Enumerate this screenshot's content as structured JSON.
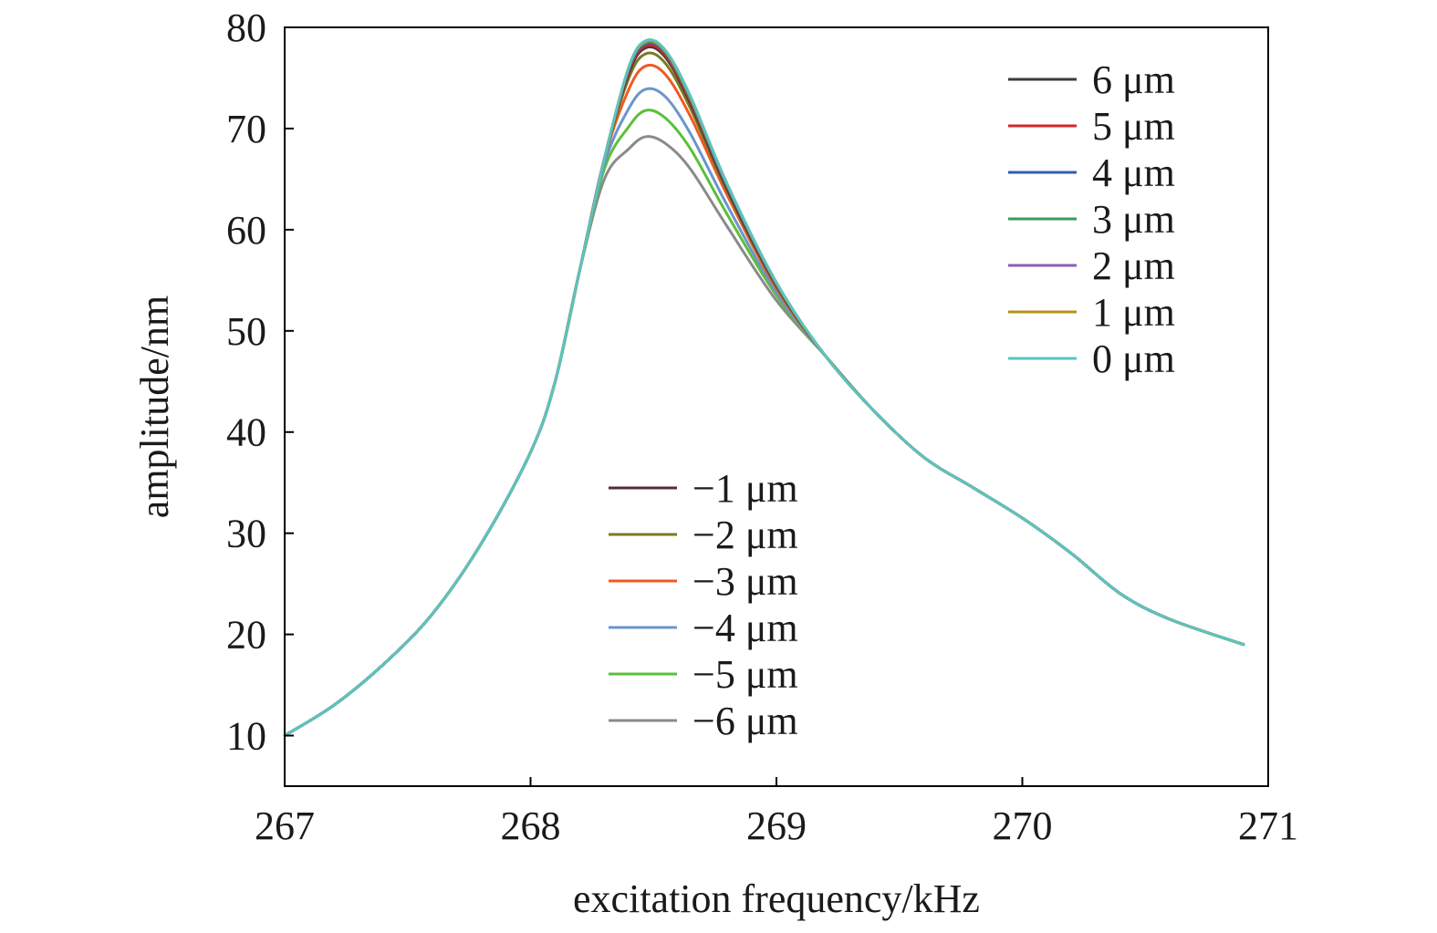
{
  "chart_data": {
    "type": "line",
    "title": "",
    "xlabel": "excitation frequency/kHz",
    "ylabel": "amplitude/nm",
    "xlim": [
      267,
      271
    ],
    "ylim": [
      5,
      80
    ],
    "xticks": [
      267,
      268,
      269,
      270,
      271
    ],
    "yticks": [
      10,
      20,
      30,
      40,
      50,
      60,
      70,
      80
    ],
    "x_tick_labels": [
      "267",
      "268",
      "269",
      "270",
      "271"
    ],
    "y_tick_labels": [
      "10",
      "20",
      "30",
      "40",
      "50",
      "60",
      "70",
      "80"
    ],
    "x": [
      267.0,
      267.2,
      267.4,
      267.6,
      267.8,
      268.0,
      268.1,
      268.2,
      268.3,
      268.4,
      268.47,
      268.55,
      268.65,
      268.8,
      269.0,
      269.2,
      269.4,
      269.6,
      269.8,
      270.0,
      270.2,
      270.4,
      270.6,
      270.9
    ],
    "grid": false,
    "legend": [
      {
        "position": "top-right",
        "entries": [
          "6 μm",
          "5 μm",
          "4 μm",
          "3 μm",
          "2 μm",
          "1 μm",
          "0 μm"
        ]
      },
      {
        "position": "bottom-center",
        "entries": [
          "−1 μm",
          "−2 μm",
          "−3 μm",
          "−4 μm",
          "−5 μm",
          "−6 μm"
        ]
      }
    ],
    "series": [
      {
        "name": "6 μm",
        "color": "#3a3a3a",
        "values": [
          10,
          13,
          17,
          22,
          29,
          38,
          45,
          56,
          67,
          75.5,
          78.0,
          77.0,
          72.5,
          64.0,
          54.5,
          47.5,
          42.0,
          37.5,
          34.5,
          31.5,
          28.0,
          24.0,
          21.5,
          19.0
        ]
      },
      {
        "name": "5 μm",
        "color": "#d62728",
        "values": [
          10,
          13,
          17,
          22,
          29,
          38,
          45,
          56,
          67,
          75.7,
          78.2,
          77.2,
          72.7,
          64.2,
          54.6,
          47.5,
          42.0,
          37.5,
          34.5,
          31.5,
          28.0,
          24.0,
          21.5,
          19.0
        ]
      },
      {
        "name": "4 μm",
        "color": "#2f5fa8",
        "values": [
          10,
          13,
          17,
          22,
          29,
          38,
          45,
          56,
          67,
          75.9,
          78.4,
          77.4,
          72.9,
          64.3,
          54.6,
          47.5,
          42.0,
          37.5,
          34.5,
          31.5,
          28.0,
          24.0,
          21.5,
          19.0
        ]
      },
      {
        "name": "3 μm",
        "color": "#3a9a5b",
        "values": [
          10,
          13,
          17,
          22,
          29,
          38,
          45,
          56,
          67,
          76.0,
          78.5,
          77.5,
          73.0,
          64.4,
          54.7,
          47.5,
          42.0,
          37.5,
          34.5,
          31.5,
          28.0,
          24.0,
          21.5,
          19.0
        ]
      },
      {
        "name": "2 μm",
        "color": "#8a5fb5",
        "values": [
          10,
          13,
          17,
          22,
          29,
          38,
          45,
          56,
          67,
          76.0,
          78.5,
          77.5,
          73.0,
          64.4,
          54.7,
          47.5,
          42.0,
          37.5,
          34.5,
          31.5,
          28.0,
          24.0,
          21.5,
          19.0
        ]
      },
      {
        "name": "1 μm",
        "color": "#b8901a",
        "values": [
          10,
          13,
          17,
          22,
          29,
          38,
          45,
          56,
          67,
          76.1,
          78.6,
          77.6,
          73.1,
          64.5,
          54.7,
          47.5,
          42.0,
          37.5,
          34.5,
          31.5,
          28.0,
          24.0,
          21.5,
          19.0
        ]
      },
      {
        "name": "0 μm",
        "color": "#5cc3c0",
        "values": [
          10,
          13,
          17,
          22,
          29,
          38,
          45,
          56,
          67,
          76.1,
          78.7,
          77.7,
          73.2,
          64.5,
          54.8,
          47.5,
          42.0,
          37.5,
          34.5,
          31.5,
          28.0,
          24.0,
          21.5,
          19.0
        ]
      },
      {
        "name": "−1 μm",
        "color": "#5a2a3a",
        "values": [
          10,
          13,
          17,
          22,
          29,
          38,
          45,
          56,
          67,
          75.6,
          78.1,
          77.1,
          72.6,
          64.1,
          54.5,
          47.5,
          42.0,
          37.5,
          34.5,
          31.5,
          28.0,
          24.0,
          21.5,
          19.0
        ]
      },
      {
        "name": "−2 μm",
        "color": "#7a7a22",
        "values": [
          10,
          13,
          17,
          22,
          29,
          38,
          45,
          56,
          67,
          75.0,
          77.4,
          76.4,
          72.0,
          63.8,
          54.4,
          47.5,
          42.0,
          37.5,
          34.5,
          31.5,
          28.0,
          24.0,
          21.5,
          19.0
        ]
      },
      {
        "name": "−3 μm",
        "color": "#f05a22",
        "values": [
          10,
          13,
          17,
          22,
          29,
          38,
          45,
          56,
          67,
          73.9,
          76.2,
          75.3,
          71.2,
          63.4,
          54.2,
          47.5,
          42.0,
          37.5,
          34.5,
          31.5,
          28.0,
          24.0,
          21.5,
          19.0
        ]
      },
      {
        "name": "−4 μm",
        "color": "#6b95cc",
        "values": [
          10,
          13,
          17,
          22,
          29,
          38,
          45,
          56,
          66.5,
          72.0,
          73.9,
          73.1,
          69.5,
          62.4,
          53.8,
          47.5,
          42.0,
          37.5,
          34.5,
          31.5,
          28.0,
          24.0,
          21.5,
          19.0
        ]
      },
      {
        "name": "−5 μm",
        "color": "#5bbf3a",
        "values": [
          10,
          13,
          17,
          22,
          29,
          38,
          45,
          56,
          66.0,
          70.2,
          71.8,
          71.0,
          68.0,
          61.5,
          53.5,
          47.5,
          42.0,
          37.5,
          34.5,
          31.5,
          28.0,
          24.0,
          21.5,
          19.0
        ]
      },
      {
        "name": "−6 μm",
        "color": "#8a8a8a",
        "values": [
          10,
          13,
          17,
          22,
          29,
          38,
          45,
          56,
          65.0,
          68.0,
          69.2,
          68.5,
          66.0,
          60.3,
          53.0,
          47.5,
          42.0,
          37.5,
          34.5,
          31.5,
          28.0,
          24.0,
          21.5,
          19.0
        ]
      }
    ]
  }
}
